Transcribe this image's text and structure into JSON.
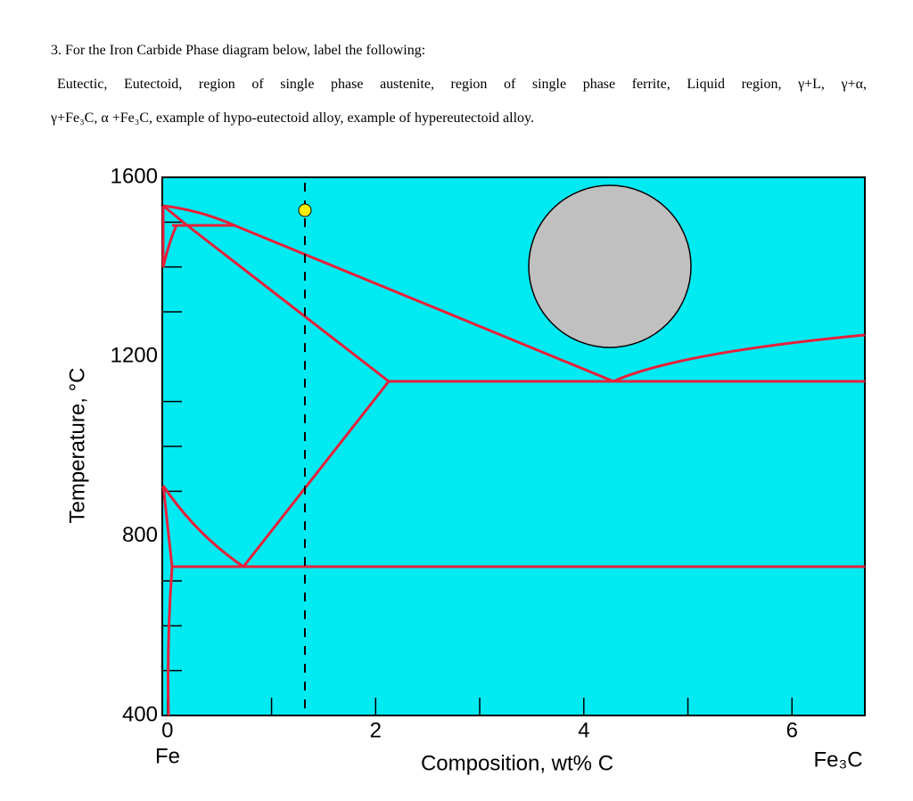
{
  "question": {
    "heading": "3. For the Iron Carbide Phase diagram below, label the following:",
    "items_line1": "Eutectic, Eutectoid, region of single phase austenite, region of single phase ferrite, Liquid region, γ+L, γ+α,",
    "items_line2": "γ+Fe₃C, α +Fe₃C, example of hypo-eutectoid alloy, example of hypereutectoid alloy."
  },
  "chart_data": {
    "type": "phase-diagram",
    "y_label": "Temperature, °C",
    "x_label": "Composition, wt% C",
    "x_left_label": "Fe",
    "x_right_label": "Fe₃C",
    "xlim": [
      -0.05,
      6.7
    ],
    "ylim": [
      400,
      1600
    ],
    "xticks": [
      0,
      2,
      4,
      6
    ],
    "xminor": [
      1,
      3,
      5
    ],
    "yticks": [
      400,
      800,
      1200,
      1600
    ],
    "yminor": [
      500,
      600,
      700,
      900,
      1000,
      1100,
      1300,
      1400,
      1500
    ],
    "background": "#00eaf2",
    "line_color": "#e8203a"
  }
}
